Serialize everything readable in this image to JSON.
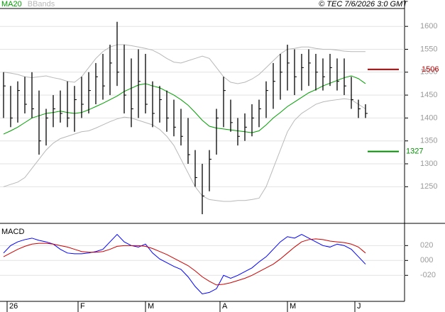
{
  "chart_data": [
    {
      "type": "ohlc",
      "x": [
        0,
        1,
        2,
        3,
        4,
        5,
        6,
        7,
        8,
        9,
        10,
        11,
        12,
        13,
        14,
        15,
        16,
        17,
        18,
        19,
        20,
        21,
        22,
        23,
        24,
        25,
        26,
        27,
        28,
        29,
        30,
        31,
        32,
        33,
        34,
        35,
        36,
        37,
        38,
        39,
        40,
        41,
        42,
        43,
        44,
        45,
        46,
        47,
        48,
        49,
        50,
        51
      ],
      "high": [
        1500,
        1470,
        1480,
        1490,
        1500,
        1460,
        1420,
        1450,
        1460,
        1480,
        1470,
        1490,
        1500,
        1520,
        1540,
        1560,
        1610,
        1560,
        1530,
        1550,
        1540,
        1480,
        1470,
        1460,
        1440,
        1420,
        1400,
        1330,
        1300,
        1330,
        1420,
        1490,
        1440,
        1400,
        1410,
        1430,
        1440,
        1480,
        1520,
        1540,
        1560,
        1550,
        1540,
        1550,
        1540,
        1530,
        1540,
        1530,
        1530,
        1490,
        1440,
        1430
      ],
      "low": [
        1400,
        1380,
        1390,
        1410,
        1400,
        1320,
        1340,
        1380,
        1390,
        1380,
        1370,
        1400,
        1410,
        1430,
        1440,
        1450,
        1470,
        1410,
        1380,
        1400,
        1410,
        1380,
        1390,
        1370,
        1360,
        1340,
        1300,
        1250,
        1190,
        1240,
        1320,
        1380,
        1370,
        1340,
        1350,
        1360,
        1380,
        1400,
        1420,
        1440,
        1460,
        1450,
        1460,
        1470,
        1460,
        1460,
        1470,
        1460,
        1450,
        1420,
        1400,
        1400
      ],
      "close": [
        1470,
        1400,
        1460,
        1430,
        1420,
        1350,
        1400,
        1420,
        1410,
        1400,
        1440,
        1430,
        1460,
        1490,
        1470,
        1520,
        1500,
        1450,
        1420,
        1480,
        1430,
        1410,
        1440,
        1400,
        1380,
        1360,
        1320,
        1270,
        1230,
        1310,
        1400,
        1460,
        1390,
        1360,
        1380,
        1400,
        1420,
        1460,
        1480,
        1500,
        1520,
        1490,
        1510,
        1520,
        1500,
        1490,
        1510,
        1480,
        1470,
        1440,
        1420,
        1410
      ],
      "color": "#000000",
      "series": [
        {
          "name": "MA20",
          "color": "#00a000",
          "values": [
            1365,
            1372,
            1380,
            1390,
            1400,
            1405,
            1410,
            1412,
            1415,
            1412,
            1410,
            1412,
            1418,
            1425,
            1432,
            1440,
            1448,
            1458,
            1465,
            1472,
            1475,
            1470,
            1466,
            1458,
            1450,
            1440,
            1428,
            1412,
            1395,
            1382,
            1378,
            1376,
            1374,
            1372,
            1370,
            1368,
            1372,
            1385,
            1400,
            1412,
            1425,
            1435,
            1445,
            1455,
            1462,
            1470,
            1476,
            1482,
            1488,
            1492,
            1486,
            1475
          ]
        },
        {
          "name": "BBands",
          "color": "#b8b8b8",
          "values": [
            1500,
            1498,
            1495,
            1490,
            1488,
            1490,
            1492,
            1488,
            1485,
            1480,
            1478,
            1490,
            1510,
            1530,
            1545,
            1555,
            1560,
            1560,
            1558,
            1555,
            1552,
            1548,
            1540,
            1530,
            1522,
            1520,
            1525,
            1530,
            1535,
            1530,
            1510,
            1490,
            1478,
            1475,
            1478,
            1485,
            1495,
            1510,
            1525,
            1540,
            1550,
            1552,
            1555,
            1555,
            1552,
            1550,
            1550,
            1548,
            1546,
            1545,
            1545,
            1545
          ],
          "lower": [
            1250,
            1255,
            1260,
            1270,
            1290,
            1310,
            1330,
            1345,
            1355,
            1360,
            1365,
            1370,
            1372,
            1378,
            1385,
            1392,
            1398,
            1402,
            1400,
            1395,
            1390,
            1385,
            1375,
            1360,
            1340,
            1310,
            1280,
            1250,
            1230,
            1222,
            1220,
            1218,
            1218,
            1220,
            1220,
            1222,
            1225,
            1250,
            1290,
            1330,
            1370,
            1395,
            1410,
            1420,
            1430,
            1435,
            1438,
            1440,
            1442,
            1440,
            1430,
            1420
          ]
        }
      ],
      "levels": [
        {
          "value": 1506,
          "color": "#c00000"
        },
        {
          "value": 1327,
          "color": "#009000"
        }
      ],
      "xlim": [
        -0.5,
        56.5
      ],
      "ylim": [
        1170,
        1639
      ],
      "yticks": [
        1250,
        1300,
        1350,
        1400,
        1450,
        1500,
        1550,
        1600
      ],
      "grid": true,
      "credit": "© TEC 7/6/2026 3:0 GMT"
    },
    {
      "type": "line",
      "title": "MACD",
      "series": [
        {
          "color": "#0000ff",
          "values": [
            10,
            20,
            25,
            28,
            30,
            27,
            25,
            22,
            15,
            10,
            9,
            9,
            10,
            12,
            15,
            25,
            35,
            25,
            20,
            18,
            22,
            10,
            2,
            -3,
            -8,
            -12,
            -22,
            -35,
            -45,
            -43,
            -38,
            -20,
            -24,
            -20,
            -15,
            -10,
            -2,
            5,
            15,
            25,
            32,
            30,
            35,
            30,
            25,
            20,
            18,
            22,
            20,
            15,
            5,
            -5
          ]
        },
        {
          "color": "#cc0000",
          "values": [
            5,
            10,
            15,
            19,
            22,
            23,
            23,
            22,
            20,
            18,
            15,
            12,
            11,
            11,
            12,
            15,
            19,
            20,
            20,
            20,
            19,
            16,
            12,
            8,
            3,
            -2,
            -7,
            -14,
            -22,
            -28,
            -33,
            -32,
            -30,
            -27,
            -24,
            -20,
            -15,
            -10,
            -5,
            2,
            10,
            18,
            25,
            28,
            29,
            28,
            26,
            25,
            24,
            22,
            18,
            10
          ]
        }
      ],
      "ylim": [
        -55,
        47
      ],
      "yticks": [
        {
          "value": 20,
          "label": "020"
        },
        {
          "value": 0,
          "label": "000"
        },
        {
          "value": -20,
          "label": "-020"
        }
      ],
      "grid": true,
      "xticks": [
        {
          "value": 0.5,
          "label": "26"
        },
        {
          "value": 10.5,
          "label": "F"
        },
        {
          "value": 20,
          "label": "M"
        },
        {
          "value": 30.5,
          "label": "A"
        },
        {
          "value": 40,
          "label": "M"
        },
        {
          "value": 49.5,
          "label": "J"
        }
      ]
    }
  ]
}
